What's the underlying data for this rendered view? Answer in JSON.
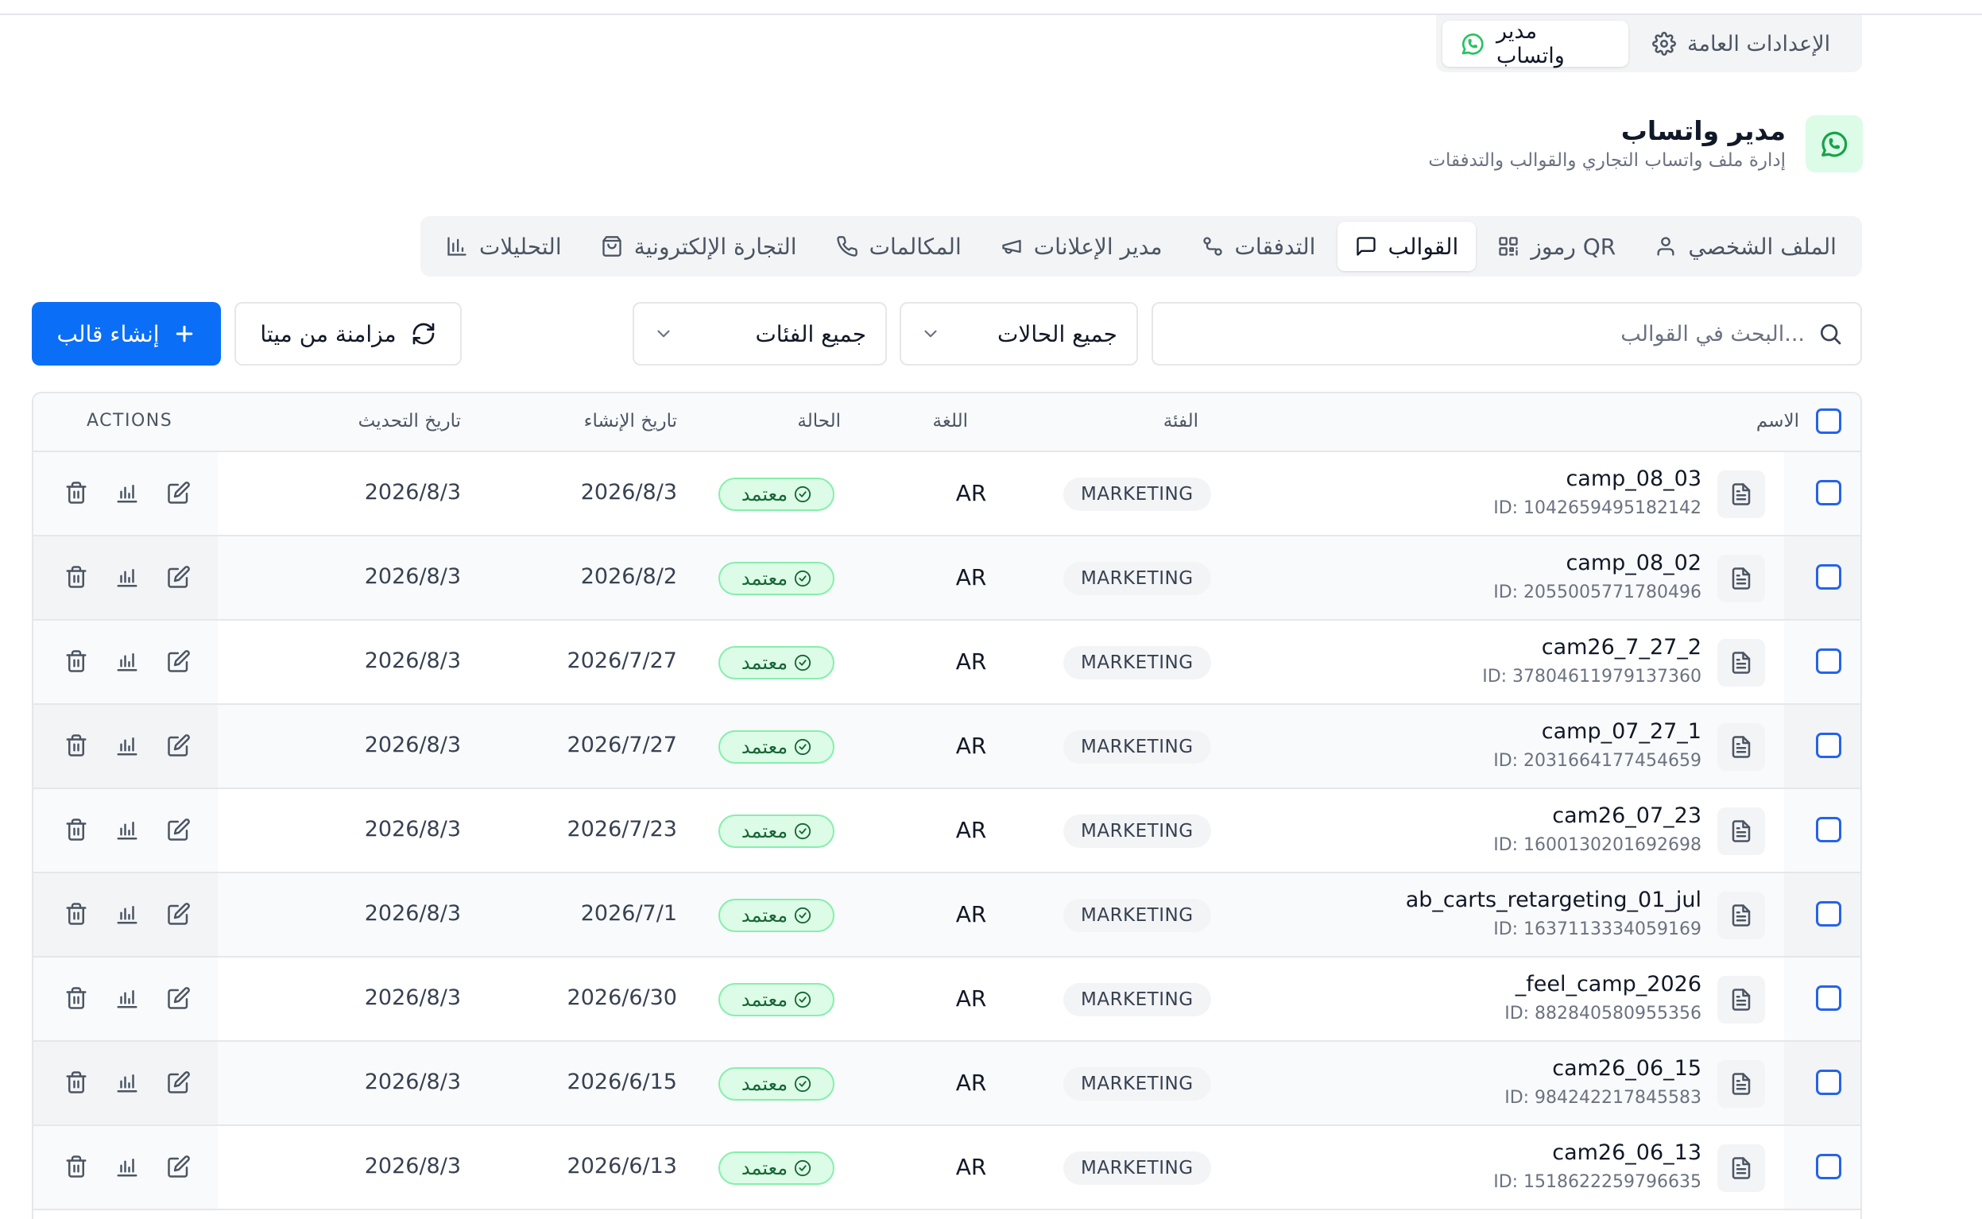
{
  "settings_tabs": [
    {
      "label": "الإعدادات العامة",
      "icon": "gear-icon"
    },
    {
      "label": "مدير واتساب",
      "icon": "whatsapp-icon",
      "active": true
    }
  ],
  "header": {
    "title": "مدير واتساب",
    "subtitle": "إدارة ملف واتساب التجاري والقوالب والتدفقات",
    "icon": "whatsapp-icon"
  },
  "tabs": [
    {
      "label": "الملف الشخصي",
      "icon": "user-icon"
    },
    {
      "label": "رموز QR",
      "icon": "qr-code-icon"
    },
    {
      "label": "القوالب",
      "icon": "message-square-icon",
      "active": true
    },
    {
      "label": "التدفقات",
      "icon": "flow-icon"
    },
    {
      "label": "مدير الإعلانات",
      "icon": "megaphone-icon"
    },
    {
      "label": "المكالمات",
      "icon": "phone-icon"
    },
    {
      "label": "التجارة الإلكترونية",
      "icon": "shopping-bag-icon"
    },
    {
      "label": "التحليلات",
      "icon": "bar-chart-icon"
    }
  ],
  "toolbar": {
    "search_placeholder": "البحث في القوالب...",
    "status_filter": "جميع الحالات",
    "category_filter": "جميع الفئات",
    "sync_label": "مزامنة من ميتا",
    "create_label": "إنشاء قالب"
  },
  "table": {
    "columns": {
      "name": "الاسم",
      "category": "الفئة",
      "language": "اللغة",
      "status": "الحالة",
      "created": "تاريخ الإنشاء",
      "updated": "تاريخ التحديث",
      "actions": "ACTIONS"
    },
    "rows": [
      {
        "name": "camp_08_03",
        "id": "ID: 1042659495182142",
        "category": "MARKETING",
        "language": "AR",
        "status": "معتمد",
        "created": "2026/8/3",
        "updated": "2026/8/3"
      },
      {
        "name": "camp_08_02",
        "id": "ID: 2055005771780496",
        "category": "MARKETING",
        "language": "AR",
        "status": "معتمد",
        "created": "2026/8/2",
        "updated": "2026/8/3"
      },
      {
        "name": "cam26_7_27_2",
        "id": "ID: 37804611979137360",
        "category": "MARKETING",
        "language": "AR",
        "status": "معتمد",
        "created": "2026/7/27",
        "updated": "2026/8/3"
      },
      {
        "name": "camp_07_27_1",
        "id": "ID: 2031664177454659",
        "category": "MARKETING",
        "language": "AR",
        "status": "معتمد",
        "created": "2026/7/27",
        "updated": "2026/8/3"
      },
      {
        "name": "cam26_07_23",
        "id": "ID: 1600130201692698",
        "category": "MARKETING",
        "language": "AR",
        "status": "معتمد",
        "created": "2026/7/23",
        "updated": "2026/8/3"
      },
      {
        "name": "ab_carts_retargeting_01_jul",
        "id": "ID: 1637113334059169",
        "category": "MARKETING",
        "language": "AR",
        "status": "معتمد",
        "created": "2026/7/1",
        "updated": "2026/8/3"
      },
      {
        "name": "_feel_camp_2026",
        "id": "ID: 882840580955356",
        "category": "MARKETING",
        "language": "AR",
        "status": "معتمد",
        "created": "2026/6/30",
        "updated": "2026/8/3"
      },
      {
        "name": "cam26_06_15",
        "id": "ID: 984242217845583",
        "category": "MARKETING",
        "language": "AR",
        "status": "معتمد",
        "created": "2026/6/15",
        "updated": "2026/8/3"
      },
      {
        "name": "cam26_06_13",
        "id": "ID: 1518622259796635",
        "category": "MARKETING",
        "language": "AR",
        "status": "معتمد",
        "created": "2026/6/13",
        "updated": "2026/8/3"
      }
    ]
  },
  "colors": {
    "primary": "#0b6ef6",
    "whatsapp": "#22c55e",
    "status_approved_bg": "#dcfce7",
    "status_approved_text": "#166534",
    "checkbox": "#2563eb"
  }
}
